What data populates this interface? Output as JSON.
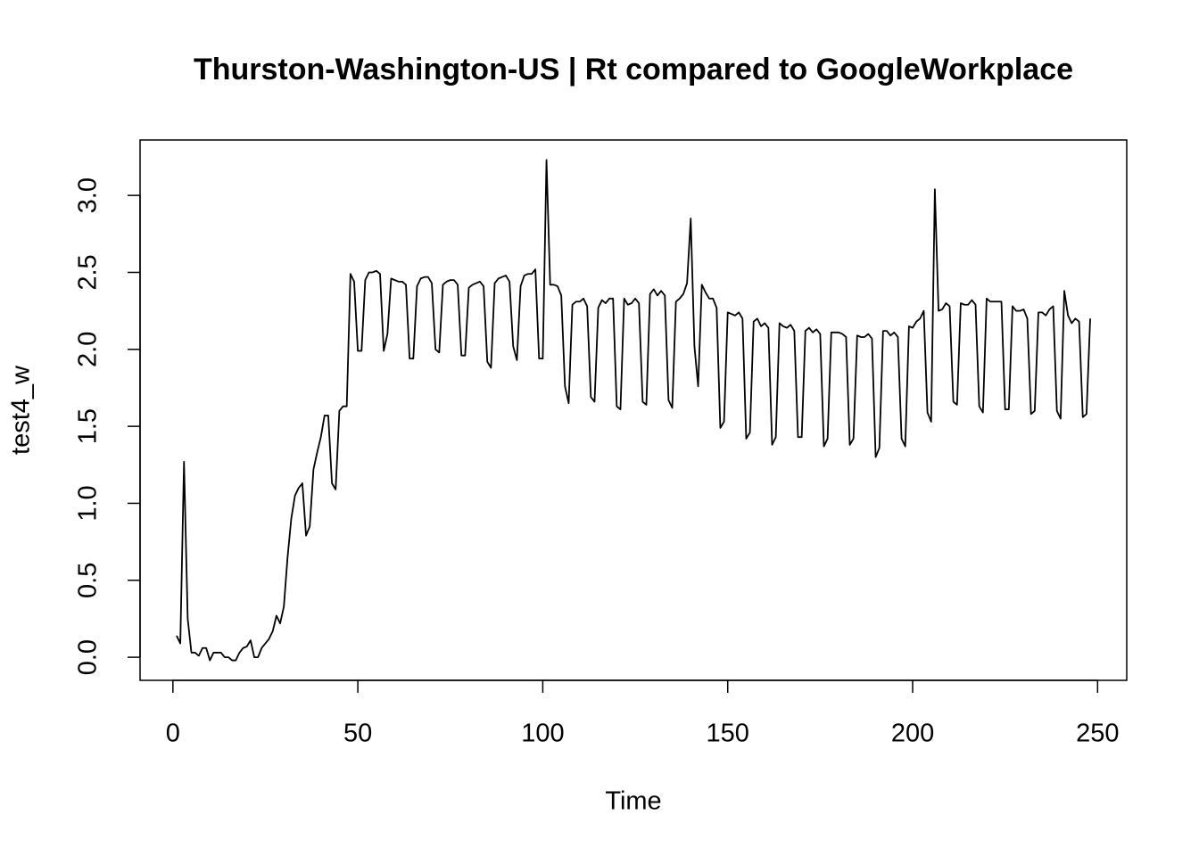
{
  "chart_data": {
    "type": "line",
    "title": "Thurston-Washington-US | Rt compared to GoogleWorkplace",
    "x_label": "Time",
    "y_label": "test4_w",
    "color": "#000000",
    "xlim": [
      -8.88,
      257.88
    ],
    "ylim": [
      -0.15,
      3.36
    ],
    "xticks": [
      0,
      50,
      100,
      150,
      200,
      250
    ],
    "yticks": [
      {
        "value": 0,
        "label": "0.0"
      },
      0.5,
      {
        "value": 1,
        "label": "1.0"
      },
      1.5,
      {
        "value": 2,
        "label": "2.0"
      },
      2.5,
      {
        "value": 3,
        "label": "3.0"
      }
    ],
    "x": [
      1,
      2,
      3,
      4,
      5,
      6,
      7,
      8,
      9,
      10,
      11,
      12,
      13,
      14,
      15,
      16,
      17,
      18,
      19,
      20,
      21,
      22,
      23,
      24,
      25,
      26,
      27,
      28,
      29,
      30,
      31,
      32,
      33,
      34,
      35,
      36,
      37,
      38,
      39,
      40,
      41,
      42,
      43,
      44,
      45,
      46,
      47,
      48,
      49,
      50,
      51,
      52,
      53,
      54,
      55,
      56,
      57,
      58,
      59,
      60,
      61,
      62,
      63,
      64,
      65,
      66,
      67,
      68,
      69,
      70,
      71,
      72,
      73,
      74,
      75,
      76,
      77,
      78,
      79,
      80,
      81,
      82,
      83,
      84,
      85,
      86,
      87,
      88,
      89,
      90,
      91,
      92,
      93,
      94,
      95,
      96,
      97,
      98,
      99,
      100,
      101,
      102,
      103,
      104,
      105,
      106,
      107,
      108,
      109,
      110,
      111,
      112,
      113,
      114,
      115,
      116,
      117,
      118,
      119,
      120,
      121,
      122,
      123,
      124,
      125,
      126,
      127,
      128,
      129,
      130,
      131,
      132,
      133,
      134,
      135,
      136,
      137,
      138,
      139,
      140,
      141,
      142,
      143,
      144,
      145,
      146,
      147,
      148,
      149,
      150,
      151,
      152,
      153,
      154,
      155,
      156,
      157,
      158,
      159,
      160,
      161,
      162,
      163,
      164,
      165,
      166,
      167,
      168,
      169,
      170,
      171,
      172,
      173,
      174,
      175,
      176,
      177,
      178,
      179,
      180,
      181,
      182,
      183,
      184,
      185,
      186,
      187,
      188,
      189,
      190,
      191,
      192,
      193,
      194,
      195,
      196,
      197,
      198,
      199,
      200,
      201,
      202,
      203,
      204,
      205,
      206,
      207,
      208,
      209,
      210,
      211,
      212,
      213,
      214,
      215,
      216,
      217,
      218,
      219,
      220,
      221,
      222,
      223,
      224,
      225,
      226,
      227,
      228,
      229,
      230,
      231,
      232,
      233,
      234,
      235,
      236,
      237,
      238,
      239,
      240,
      241,
      242,
      243,
      244,
      245,
      246,
      247,
      248
    ],
    "values": [
      0.14,
      0.09,
      1.27,
      0.25,
      0.03,
      0.03,
      0.01,
      0.06,
      0.06,
      -0.02,
      0.03,
      0.03,
      0.03,
      0.0,
      0.0,
      -0.02,
      -0.02,
      0.03,
      0.06,
      0.07,
      0.11,
      0.0,
      0.0,
      0.06,
      0.09,
      0.12,
      0.17,
      0.27,
      0.22,
      0.33,
      0.65,
      0.9,
      1.05,
      1.1,
      1.13,
      0.79,
      0.85,
      1.22,
      1.33,
      1.43,
      1.57,
      1.57,
      1.13,
      1.09,
      1.6,
      1.63,
      1.63,
      2.49,
      2.44,
      1.99,
      1.99,
      2.45,
      2.5,
      2.5,
      2.51,
      2.49,
      1.99,
      2.1,
      2.46,
      2.45,
      2.44,
      2.44,
      2.42,
      1.94,
      1.94,
      2.41,
      2.46,
      2.47,
      2.47,
      2.43,
      2.0,
      1.98,
      2.42,
      2.44,
      2.45,
      2.45,
      2.42,
      1.96,
      1.96,
      2.4,
      2.42,
      2.43,
      2.44,
      2.41,
      1.92,
      1.88,
      2.43,
      2.46,
      2.47,
      2.48,
      2.44,
      2.02,
      1.93,
      2.41,
      2.48,
      2.49,
      2.49,
      2.52,
      1.94,
      1.94,
      3.23,
      2.42,
      2.42,
      2.41,
      2.35,
      1.76,
      1.65,
      2.29,
      2.31,
      2.31,
      2.33,
      2.28,
      1.69,
      1.66,
      2.27,
      2.32,
      2.3,
      2.33,
      2.33,
      1.63,
      1.61,
      2.33,
      2.29,
      2.3,
      2.33,
      2.3,
      1.66,
      1.64,
      2.36,
      2.39,
      2.35,
      2.38,
      2.35,
      1.67,
      1.62,
      2.31,
      2.33,
      2.36,
      2.43,
      2.85,
      2.02,
      1.76,
      2.42,
      2.37,
      2.33,
      2.33,
      2.27,
      1.49,
      1.53,
      2.24,
      2.23,
      2.22,
      2.24,
      2.2,
      1.42,
      1.46,
      2.18,
      2.2,
      2.15,
      2.17,
      2.14,
      1.38,
      1.43,
      2.17,
      2.15,
      2.14,
      2.16,
      2.12,
      1.43,
      1.43,
      2.12,
      2.14,
      2.11,
      2.13,
      2.1,
      1.37,
      1.42,
      2.11,
      2.11,
      2.11,
      2.1,
      2.08,
      1.38,
      1.42,
      2.09,
      2.08,
      2.08,
      2.1,
      2.07,
      1.3,
      1.36,
      2.12,
      2.12,
      2.09,
      2.11,
      2.08,
      1.42,
      1.37,
      2.15,
      2.14,
      2.18,
      2.2,
      2.25,
      1.59,
      1.53,
      3.04,
      2.25,
      2.26,
      2.3,
      2.28,
      1.66,
      1.64,
      2.3,
      2.29,
      2.29,
      2.32,
      2.29,
      1.63,
      1.59,
      2.33,
      2.31,
      2.31,
      2.31,
      2.31,
      1.61,
      1.61,
      2.28,
      2.25,
      2.25,
      2.26,
      2.2,
      1.58,
      1.6,
      2.24,
      2.24,
      2.22,
      2.26,
      2.28,
      1.6,
      1.55,
      2.38,
      2.22,
      2.17,
      2.2,
      2.18,
      1.56,
      1.58,
      2.2
    ]
  }
}
